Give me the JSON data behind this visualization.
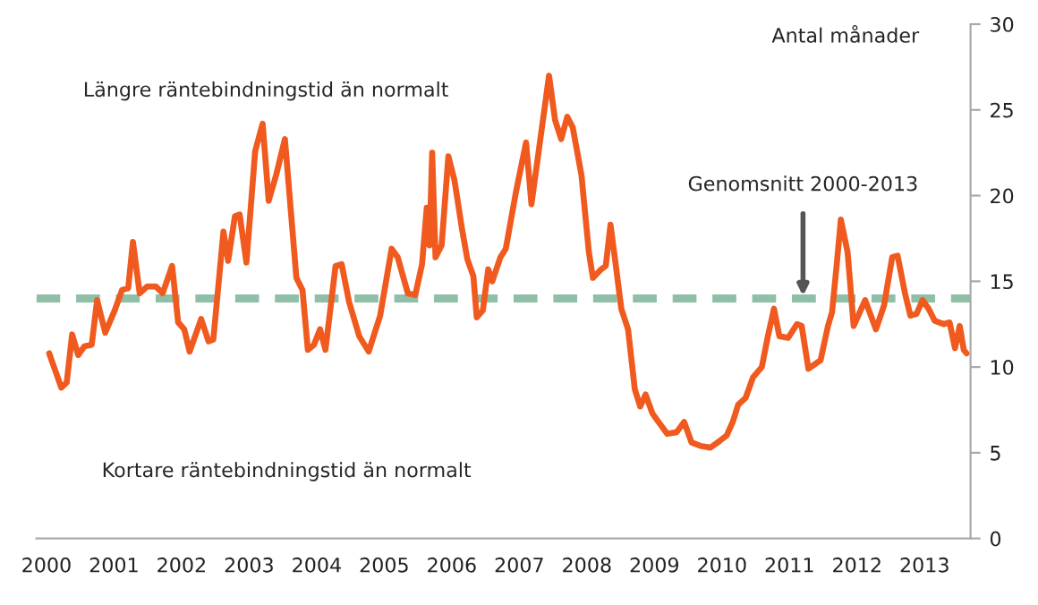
{
  "chart_data": {
    "type": "line",
    "ylabel": "Antal månader",
    "annotations": [
      {
        "text": "Genomsnitt 2000-2013",
        "x": 2011.2,
        "y": 14
      },
      "Längre räntebindningstid än normalt",
      "Kortare räntebindningstid än normalt"
    ],
    "xlim": [
      1999.85,
      2013.68
    ],
    "xticks": [
      2000,
      2001,
      2002,
      2003,
      2004,
      2005,
      2006,
      2007,
      2008,
      2009,
      2010,
      2011,
      2012,
      2013
    ],
    "ylim": [
      0,
      30
    ],
    "yticks": [
      0,
      5,
      10,
      15,
      20,
      25,
      30
    ],
    "grid": false,
    "legend": false,
    "marker": "none",
    "line_style": "solid",
    "ref_lines": [
      {
        "axis": "y",
        "value": 14,
        "color": "#8fbfa6",
        "line_style": "dashed"
      }
    ],
    "series": [
      {
        "color": "#f05a1e",
        "x": [
          2000.04,
          2000.22,
          2000.3,
          2000.38,
          2000.47,
          2000.56,
          2000.67,
          2000.75,
          2000.87,
          2001.01,
          2001.12,
          2001.21,
          2001.28,
          2001.38,
          2001.49,
          2001.62,
          2001.72,
          2001.86,
          2001.95,
          2002.04,
          2002.12,
          2002.29,
          2002.4,
          2002.47,
          2002.62,
          2002.69,
          2002.79,
          2002.86,
          2002.96,
          2003.09,
          2003.2,
          2003.29,
          2003.4,
          2003.53,
          2003.7,
          2003.79,
          2003.87,
          2003.96,
          2004.05,
          2004.13,
          2004.28,
          2004.37,
          2004.48,
          2004.63,
          2004.77,
          2004.94,
          2005.11,
          2005.2,
          2005.35,
          2005.46,
          2005.56,
          2005.63,
          2005.67,
          2005.71,
          2005.76,
          2005.85,
          2005.95,
          2006.04,
          2006.15,
          2006.23,
          2006.32,
          2006.37,
          2006.46,
          2006.54,
          2006.6,
          2006.72,
          2006.8,
          2006.95,
          2007.1,
          2007.18,
          2007.44,
          2007.53,
          2007.62,
          2007.71,
          2007.79,
          2007.92,
          2008.03,
          2008.09,
          2008.21,
          2008.28,
          2008.35,
          2008.43,
          2008.51,
          2008.61,
          2008.71,
          2008.79,
          2008.87,
          2008.97,
          2009.06,
          2009.19,
          2009.33,
          2009.44,
          2009.55,
          2009.68,
          2009.83,
          2009.97,
          2010.07,
          2010.16,
          2010.24,
          2010.35,
          2010.46,
          2010.59,
          2010.68,
          2010.77,
          2010.85,
          2010.98,
          2011.11,
          2011.18,
          2011.28,
          2011.46,
          2011.57,
          2011.63,
          2011.7,
          2011.76,
          2011.86,
          2011.95,
          2012.04,
          2012.12,
          2012.28,
          2012.4,
          2012.52,
          2012.6,
          2012.71,
          2012.79,
          2012.88,
          2012.97,
          2013.06,
          2013.15,
          2013.28,
          2013.37,
          2013.45,
          2013.52,
          2013.58,
          2013.62
        ],
        "values": [
          10.8,
          8.8,
          9.1,
          11.9,
          10.7,
          11.2,
          11.3,
          13.9,
          12.0,
          13.3,
          14.5,
          14.6,
          17.3,
          14.3,
          14.7,
          14.7,
          14.3,
          15.9,
          12.6,
          12.2,
          10.9,
          12.8,
          11.5,
          11.6,
          17.9,
          16.2,
          18.8,
          18.9,
          16.1,
          22.6,
          24.2,
          19.7,
          21.2,
          23.3,
          15.2,
          14.5,
          11.0,
          11.3,
          12.2,
          11.0,
          15.9,
          16.0,
          13.8,
          11.8,
          10.9,
          13.0,
          16.9,
          16.4,
          14.3,
          14.2,
          16.0,
          19.3,
          17.1,
          22.5,
          16.4,
          17.1,
          22.3,
          20.9,
          18.1,
          16.3,
          15.3,
          12.9,
          13.3,
          15.7,
          15.0,
          16.4,
          16.9,
          20.2,
          23.1,
          19.5,
          27.0,
          24.4,
          23.3,
          24.6,
          24.0,
          21.2,
          16.7,
          15.2,
          15.7,
          15.9,
          18.3,
          15.9,
          13.4,
          12.2,
          8.7,
          7.7,
          8.4,
          7.3,
          6.8,
          6.1,
          6.2,
          6.8,
          5.6,
          5.4,
          5.3,
          5.7,
          6.0,
          6.8,
          7.8,
          8.2,
          9.4,
          10.0,
          11.8,
          13.4,
          11.8,
          11.7,
          12.5,
          12.4,
          9.9,
          10.4,
          12.4,
          13.2,
          16.0,
          18.6,
          16.7,
          12.4,
          13.2,
          13.9,
          12.2,
          13.6,
          16.4,
          16.5,
          14.3,
          13.0,
          13.1,
          13.9,
          13.4,
          12.7,
          12.5,
          12.6,
          11.1,
          12.4,
          11.0,
          10.8
        ]
      }
    ]
  }
}
